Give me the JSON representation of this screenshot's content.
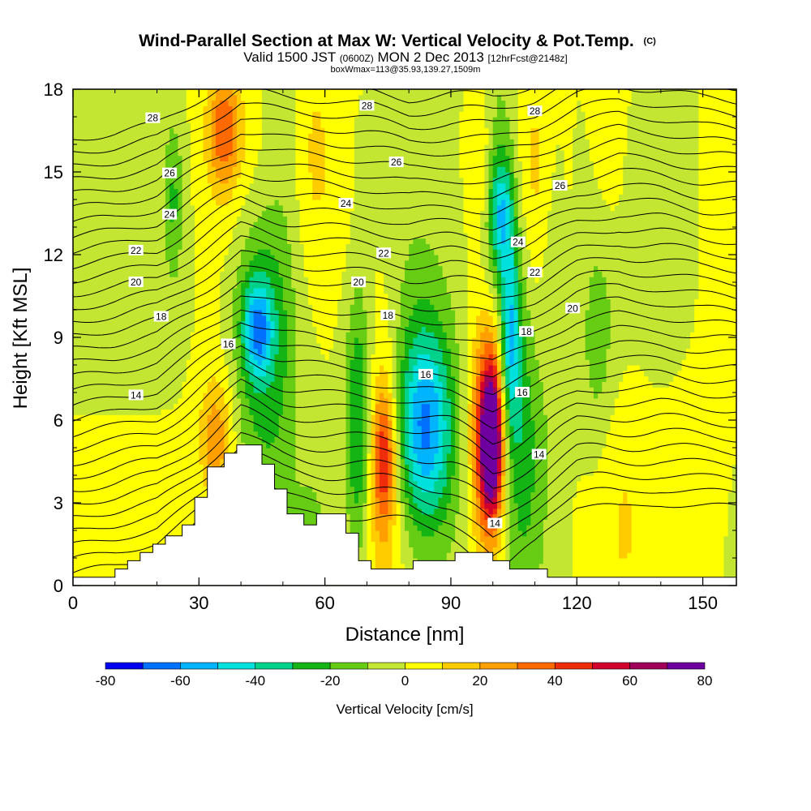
{
  "title": {
    "main": "Wind-Parallel Section at Max W: Vertical Velocity & Pot.Temp.",
    "main_tag": "(C)",
    "valid_prefix": "Valid 1500 JST",
    "valid_utc": "(0600Z)",
    "valid_date": "MON 2 Dec 2013",
    "fcst": "[12hrFcst@2148z]",
    "box": "boxWmax=113@35.93,139.27,1509m"
  },
  "chart_data": {
    "type": "heatmap",
    "title": "Wind-Parallel Section at Max W: Vertical Velocity & Pot.Temp.",
    "xlabel": "Distance [nm]",
    "ylabel": "Height [Kft MSL]",
    "xlim": [
      0,
      158
    ],
    "ylim": [
      0,
      18
    ],
    "x_ticks": [
      "0",
      "30",
      "60",
      "90",
      "120",
      "150"
    ],
    "y_ticks": [
      "0",
      "3",
      "6",
      "9",
      "12",
      "15",
      "18"
    ],
    "colorbar": {
      "label": "Vertical Velocity [cm/s]",
      "tick_labels": [
        "-80",
        "-60",
        "-40",
        "-20",
        "0",
        "20",
        "40",
        "60",
        "80"
      ],
      "range": [
        -80,
        80
      ],
      "colors": [
        "#0000f0",
        "#0070ff",
        "#00b4ff",
        "#00e0dc",
        "#00d28c",
        "#14b414",
        "#66cc14",
        "#c3e632",
        "#ffff00",
        "#ffcc00",
        "#ff9f00",
        "#ff6a00",
        "#f02d0a",
        "#d2002d",
        "#a0005a",
        "#6e00a0"
      ]
    },
    "background_value": 2,
    "velocity_cells": [
      {
        "x": 44,
        "y": 9.3,
        "sx": 2.2,
        "sy": 1.1,
        "value": -45
      },
      {
        "x": 44,
        "y": 10.0,
        "sx": 4.5,
        "sy": 2.8,
        "value": -25
      },
      {
        "x": 46,
        "y": 7.0,
        "sx": 6.0,
        "sy": 4.0,
        "value": -15
      },
      {
        "x": 84,
        "y": 5.8,
        "sx": 4.0,
        "sy": 2.2,
        "value": -38
      },
      {
        "x": 83,
        "y": 5.5,
        "sx": 6.5,
        "sy": 3.2,
        "value": -22
      },
      {
        "x": 84,
        "y": 6.5,
        "sx": 9.0,
        "sy": 5.0,
        "value": -10
      },
      {
        "x": 99.5,
        "y": 5.2,
        "sx": 1.4,
        "sy": 1.4,
        "value": 75
      },
      {
        "x": 99.5,
        "y": 5.5,
        "sx": 2.4,
        "sy": 2.4,
        "value": 55
      },
      {
        "x": 99,
        "y": 5.5,
        "sx": 3.4,
        "sy": 3.4,
        "value": 35
      },
      {
        "x": 99,
        "y": 5.5,
        "sx": 4.5,
        "sy": 4.5,
        "value": 15
      },
      {
        "x": 104,
        "y": 9.0,
        "sx": 1.6,
        "sy": 2.5,
        "value": -45
      },
      {
        "x": 102,
        "y": 13.5,
        "sx": 2.0,
        "sy": 1.5,
        "value": -42
      },
      {
        "x": 101,
        "y": 12.5,
        "sx": 3.8,
        "sy": 5.0,
        "value": -22
      },
      {
        "x": 106,
        "y": 7.0,
        "sx": 3.0,
        "sy": 4.0,
        "value": -20
      },
      {
        "x": 108,
        "y": 4.5,
        "sx": 4.0,
        "sy": 3.5,
        "value": -12
      },
      {
        "x": 74,
        "y": 4.5,
        "sx": 1.8,
        "sy": 1.6,
        "value": 40
      },
      {
        "x": 74,
        "y": 5.0,
        "sx": 3.0,
        "sy": 3.0,
        "value": 25
      },
      {
        "x": 74,
        "y": 6.5,
        "sx": 4.0,
        "sy": 5.0,
        "value": 14
      },
      {
        "x": 34,
        "y": 5.3,
        "sx": 2.5,
        "sy": 1.4,
        "value": 28
      },
      {
        "x": 35,
        "y": 5.5,
        "sx": 4.0,
        "sy": 2.5,
        "value": 12
      },
      {
        "x": 68,
        "y": 5.5,
        "sx": 2.0,
        "sy": 3.5,
        "value": -25
      },
      {
        "x": 68,
        "y": 6.0,
        "sx": 3.0,
        "sy": 4.0,
        "value": -10
      },
      {
        "x": 36,
        "y": 16.5,
        "sx": 2.5,
        "sy": 1.3,
        "value": 35
      },
      {
        "x": 36,
        "y": 16.5,
        "sx": 4.0,
        "sy": 2.5,
        "value": 15
      },
      {
        "x": 97,
        "y": 15.5,
        "sx": 2.0,
        "sy": 2.0,
        "value": 20
      },
      {
        "x": 58,
        "y": 16.0,
        "sx": 3.0,
        "sy": 2.5,
        "value": 14
      },
      {
        "x": 110,
        "y": 15.5,
        "sx": 3.0,
        "sy": 3.0,
        "value": 14
      },
      {
        "x": 128,
        "y": 15.5,
        "sx": 3.0,
        "sy": 2.5,
        "value": 12
      },
      {
        "x": 125,
        "y": 8.5,
        "sx": 3.0,
        "sy": 3.0,
        "value": -15
      },
      {
        "x": 130,
        "y": 4.0,
        "sx": 5.0,
        "sy": 3.5,
        "value": 10
      },
      {
        "x": 57,
        "y": 2.0,
        "sx": 2.5,
        "sy": 1.2,
        "value": -15
      },
      {
        "x": 50,
        "y": 12.5,
        "sx": 3.0,
        "sy": 5.0,
        "value": -8
      },
      {
        "x": 66,
        "y": 12.5,
        "sx": 6.0,
        "sy": 3.0,
        "value": 10
      },
      {
        "x": 114,
        "y": 11.5,
        "sx": 2.0,
        "sy": 4.0,
        "value": -8
      },
      {
        "x": 24,
        "y": 14.0,
        "sx": 1.5,
        "sy": 2.0,
        "value": -20
      },
      {
        "x": 150,
        "y": 2.5,
        "sx": 6.0,
        "sy": 3.5,
        "value": 8
      }
    ],
    "theta_levels": [
      13,
      13.5,
      14,
      14.5,
      15,
      15.5,
      16,
      16.5,
      17,
      17.5,
      18,
      18.5,
      19,
      19.5,
      20,
      20.5,
      21,
      21.5,
      22,
      22.5,
      23,
      23.5,
      24,
      24.5,
      25,
      25.5,
      26,
      26.5,
      27,
      27.5,
      28,
      28.5
    ],
    "theta_labels": [
      {
        "text": "28",
        "x": 19,
        "y": 16.95
      },
      {
        "text": "26",
        "x": 23,
        "y": 14.95
      },
      {
        "text": "24",
        "x": 23,
        "y": 13.45
      },
      {
        "text": "22",
        "x": 15,
        "y": 12.15
      },
      {
        "text": "20",
        "x": 15,
        "y": 11.0
      },
      {
        "text": "18",
        "x": 21,
        "y": 9.75
      },
      {
        "text": "16",
        "x": 37,
        "y": 8.75
      },
      {
        "text": "14",
        "x": 15,
        "y": 6.9
      },
      {
        "text": "28",
        "x": 70,
        "y": 17.4
      },
      {
        "text": "26",
        "x": 77,
        "y": 15.35
      },
      {
        "text": "24",
        "x": 65,
        "y": 13.85
      },
      {
        "text": "22",
        "x": 74,
        "y": 12.05
      },
      {
        "text": "20",
        "x": 68,
        "y": 11.0
      },
      {
        "text": "18",
        "x": 75,
        "y": 9.8
      },
      {
        "text": "16",
        "x": 84,
        "y": 7.65
      },
      {
        "text": "14",
        "x": 100.5,
        "y": 2.25
      },
      {
        "text": "28",
        "x": 110,
        "y": 17.2
      },
      {
        "text": "26",
        "x": 116,
        "y": 14.5
      },
      {
        "text": "24",
        "x": 106,
        "y": 12.45
      },
      {
        "text": "22",
        "x": 110,
        "y": 11.35
      },
      {
        "text": "20",
        "x": 119,
        "y": 10.05
      },
      {
        "text": "18",
        "x": 108,
        "y": 9.2
      },
      {
        "text": "16",
        "x": 107,
        "y": 7.0
      },
      {
        "text": "14",
        "x": 111,
        "y": 4.75
      }
    ],
    "terrain": [
      [
        0,
        0.3
      ],
      [
        10,
        0.3
      ],
      [
        10,
        0.6
      ],
      [
        13,
        0.6
      ],
      [
        13,
        0.9
      ],
      [
        16,
        0.9
      ],
      [
        16,
        1.2
      ],
      [
        19,
        1.2
      ],
      [
        19,
        1.5
      ],
      [
        22,
        1.5
      ],
      [
        22,
        1.8
      ],
      [
        26,
        1.8
      ],
      [
        26,
        2.2
      ],
      [
        29,
        2.2
      ],
      [
        29,
        3.2
      ],
      [
        32,
        3.2
      ],
      [
        32,
        4.3
      ],
      [
        36,
        4.3
      ],
      [
        36,
        4.8
      ],
      [
        39,
        4.8
      ],
      [
        39,
        5.1
      ],
      [
        45,
        5.1
      ],
      [
        45,
        4.4
      ],
      [
        48,
        4.4
      ],
      [
        48,
        3.5
      ],
      [
        51,
        3.5
      ],
      [
        51,
        2.6
      ],
      [
        55,
        2.6
      ],
      [
        55,
        2.2
      ],
      [
        58,
        2.2
      ],
      [
        58,
        2.6
      ],
      [
        65,
        2.6
      ],
      [
        65,
        1.9
      ],
      [
        68,
        1.9
      ],
      [
        68,
        0.9
      ],
      [
        71,
        0.9
      ],
      [
        71,
        0.6
      ],
      [
        81,
        0.6
      ],
      [
        81,
        0.9
      ],
      [
        91,
        0.9
      ],
      [
        91,
        1.2
      ],
      [
        100,
        1.2
      ],
      [
        100,
        0.9
      ],
      [
        104,
        0.9
      ],
      [
        104,
        0.6
      ],
      [
        113,
        0.6
      ],
      [
        113,
        0.3
      ],
      [
        158,
        0.3
      ]
    ]
  },
  "colors": {
    "background": "#ffffff",
    "terrain_fill": "#ffffff",
    "contour": "#000000"
  }
}
